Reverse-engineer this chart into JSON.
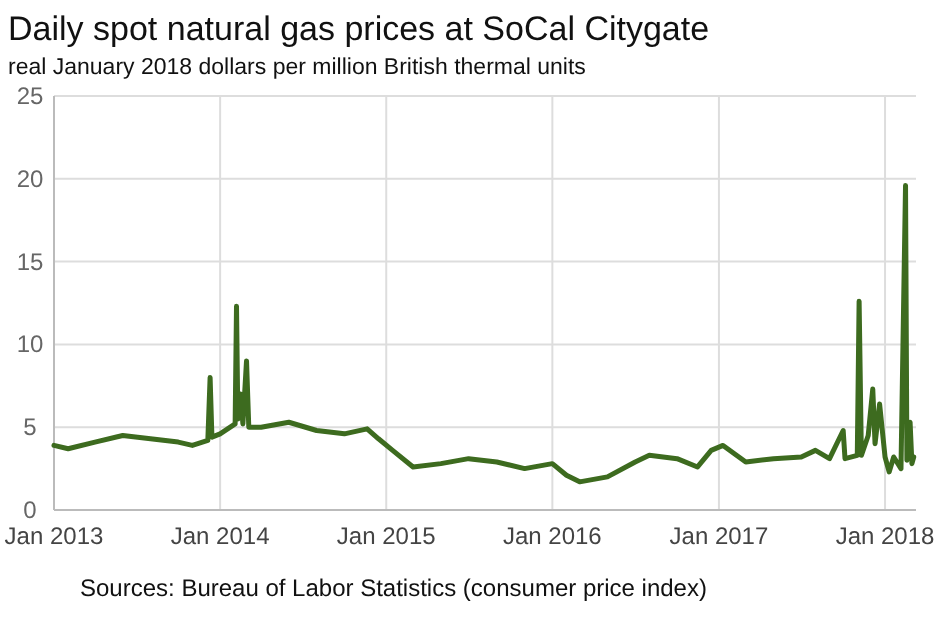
{
  "chart_data": {
    "type": "line",
    "title": "Daily spot natural gas prices at SoCal Citygate",
    "subtitle": "real January 2018 dollars per million British thermal units",
    "annotations": [
      "Sources: Bureau of Labor Statistics (consumer price index)"
    ],
    "x": [
      "2013-01-01",
      "2013-02-01",
      "2013-04-01",
      "2013-06-01",
      "2013-08-01",
      "2013-10-01",
      "2013-11-01",
      "2013-12-05",
      "2013-12-10",
      "2013-12-14",
      "2014-01-01",
      "2014-02-03",
      "2014-02-06",
      "2014-02-09",
      "2014-02-15",
      "2014-02-20",
      "2014-02-28",
      "2014-03-05",
      "2014-04-01",
      "2014-06-01",
      "2014-08-01",
      "2014-10-01",
      "2014-11-20",
      "2014-12-15",
      "2015-01-15",
      "2015-03-01",
      "2015-05-01",
      "2015-07-01",
      "2015-09-01",
      "2015-11-01",
      "2016-01-01",
      "2016-02-01",
      "2016-03-01",
      "2016-05-01",
      "2016-07-01",
      "2016-08-01",
      "2016-10-01",
      "2016-11-15",
      "2016-12-15",
      "2017-01-10",
      "2017-03-01",
      "2017-05-01",
      "2017-07-01",
      "2017-08-01",
      "2017-09-01",
      "2017-10-01",
      "2017-10-05",
      "2017-11-01",
      "2017-11-05",
      "2017-11-10",
      "2017-11-25",
      "2017-12-05",
      "2017-12-10",
      "2017-12-20",
      "2018-01-01",
      "2018-01-10",
      "2018-01-20",
      "2018-02-05",
      "2018-02-15",
      "2018-02-18",
      "2018-02-25",
      "2018-03-01",
      "2018-03-05"
    ],
    "series": [
      {
        "color": "#3d6b1f",
        "values": [
          3.9,
          3.7,
          4.1,
          4.5,
          4.3,
          4.1,
          3.9,
          4.2,
          8.0,
          4.4,
          4.6,
          5.2,
          12.3,
          5.5,
          7.0,
          5.2,
          9.0,
          5.0,
          5.0,
          5.3,
          4.8,
          4.6,
          4.9,
          4.3,
          3.6,
          2.6,
          2.8,
          3.1,
          2.9,
          2.5,
          2.8,
          2.1,
          1.7,
          2.0,
          2.9,
          3.3,
          3.1,
          2.6,
          3.6,
          3.9,
          2.9,
          3.1,
          3.2,
          3.6,
          3.1,
          4.8,
          3.1,
          3.3,
          12.6,
          3.3,
          4.5,
          7.3,
          4.0,
          6.4,
          3.2,
          2.3,
          3.2,
          2.5,
          19.6,
          3.0,
          5.3,
          2.8,
          3.2
        ]
      }
    ],
    "xlim": [
      "2013-01-01",
      "2018-03-10"
    ],
    "xticks": [
      {
        "value": "2013-01-01",
        "label": "Jan 2013"
      },
      {
        "value": "2014-01-01",
        "label": "Jan 2014"
      },
      {
        "value": "2015-01-01",
        "label": "Jan 2015"
      },
      {
        "value": "2016-01-01",
        "label": "Jan 2016"
      },
      {
        "value": "2017-01-01",
        "label": "Jan 2017"
      },
      {
        "value": "2018-01-01",
        "label": "Jan 2018"
      }
    ],
    "ylim": [
      0,
      25
    ],
    "yticks": [
      0,
      5,
      10,
      15,
      20,
      25
    ],
    "grid": true
  }
}
